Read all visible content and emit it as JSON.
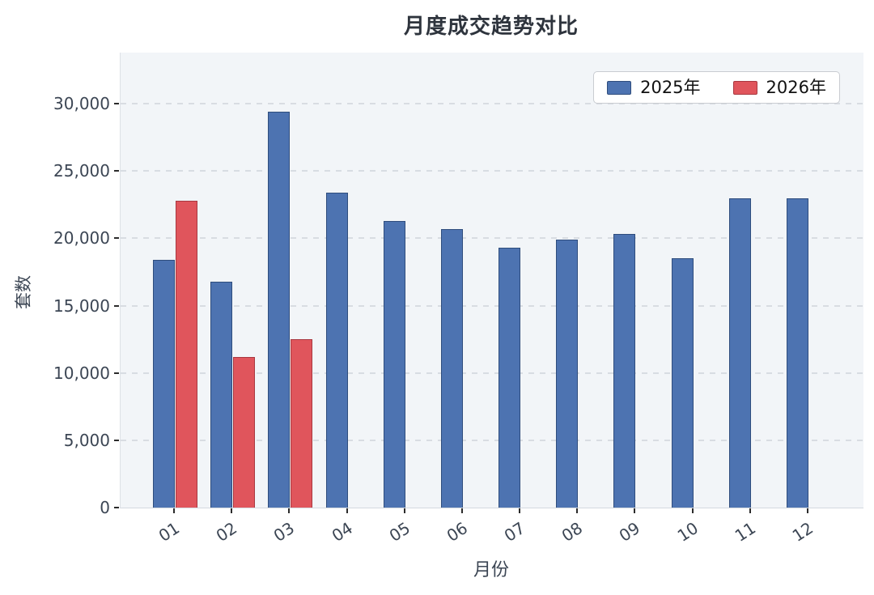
{
  "title": "月度成交趋势对比",
  "chart_data": {
    "type": "bar",
    "title": "月度成交趋势对比",
    "xlabel": "月份",
    "ylabel": "套数",
    "categories": [
      "01",
      "02",
      "03",
      "04",
      "05",
      "06",
      "07",
      "08",
      "09",
      "10",
      "11",
      "12"
    ],
    "series": [
      {
        "name": "2025年",
        "color": "#4d73b1",
        "edge_color": "#2f4d7d",
        "values": [
          18400,
          16800,
          29400,
          23400,
          21300,
          20700,
          19300,
          19900,
          20300,
          18500,
          23000,
          23000
        ]
      },
      {
        "name": "2026年",
        "color": "#e0555c",
        "edge_color": "#a83840",
        "values": [
          22800,
          11200,
          12500,
          null,
          null,
          null,
          null,
          null,
          null,
          null,
          null,
          null
        ]
      }
    ],
    "ylim": [
      0,
      33800
    ],
    "yticks": [
      0,
      5000,
      10000,
      15000,
      20000,
      25000,
      30000
    ],
    "ytick_labels": [
      "0",
      "5,000",
      "10,000",
      "15,000",
      "20,000",
      "25,000",
      "30,000"
    ],
    "grid": true,
    "grid_style": "dashed",
    "legend_position": "top-right"
  },
  "colors": {
    "plot_background": "#f2f5f8",
    "gridline": "#d8dce2",
    "tick_text": "#3c4654",
    "title_text": "#2e343d",
    "legend_border": "#c9ccd1",
    "series_2025": "#4d73b1",
    "series_2026": "#e0555c"
  }
}
